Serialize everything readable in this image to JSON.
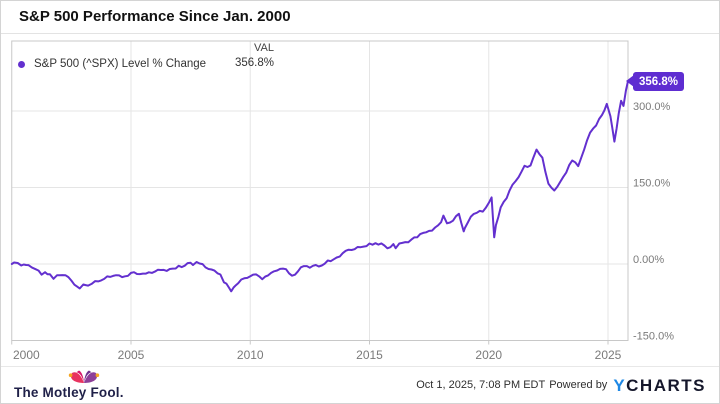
{
  "header": {
    "title": "S&P 500 Performance Since Jan. 2000"
  },
  "legend": {
    "series_label": "S&P 500 (^SPX) Level % Change",
    "val_header": "VAL",
    "val_value": "356.8%"
  },
  "badge": {
    "value": "356.8%"
  },
  "footer": {
    "brand": "The Motley Fool.",
    "timestamp": "Oct 1, 2025, 7:08 PM EDT",
    "powered_by": "Powered by",
    "ycharts_y": "Y",
    "ycharts_rest": "CHARTS"
  },
  "colors": {
    "line": "#6330cf",
    "badge": "#5e2dd1",
    "grid": "#e5e5e5",
    "plot_border": "#c8c8c8",
    "axis_text": "#7a7a7a"
  },
  "chart_data": {
    "type": "line",
    "title": "S&P 500 Performance Since Jan. 2000",
    "legend_position": "top-left",
    "grid": true,
    "y_axis_side": "right",
    "x_range": [
      2000,
      2025.85
    ],
    "y_range": [
      -150,
      437
    ],
    "x_ticks": [
      {
        "label": "2000",
        "year": 2000
      },
      {
        "label": "2005",
        "year": 2005
      },
      {
        "label": "2010",
        "year": 2010
      },
      {
        "label": "2015",
        "year": 2015
      },
      {
        "label": "2020",
        "year": 2020
      },
      {
        "label": "2025",
        "year": 2025
      }
    ],
    "y_ticks": [
      {
        "label": "300.0%",
        "value": 300
      },
      {
        "label": "150.0%",
        "value": 150
      },
      {
        "label": "0.00%",
        "value": 0
      },
      {
        "label": "-150.0%",
        "value": -150
      }
    ],
    "series": [
      {
        "name": "S&P 500 (^SPX) Level % Change",
        "final_value": 356.8,
        "points": [
          [
            2000.0,
            0
          ],
          [
            2000.1,
            3
          ],
          [
            2000.25,
            2
          ],
          [
            2000.4,
            -3
          ],
          [
            2000.5,
            -1
          ],
          [
            2000.7,
            -2.2
          ],
          [
            2000.85,
            -7
          ],
          [
            2001.0,
            -10.1
          ],
          [
            2001.25,
            -21
          ],
          [
            2001.4,
            -16
          ],
          [
            2001.6,
            -20
          ],
          [
            2001.75,
            -29.1
          ],
          [
            2001.9,
            -22
          ],
          [
            2002.0,
            -21.9
          ],
          [
            2002.25,
            -22
          ],
          [
            2002.5,
            -32.6
          ],
          [
            2002.75,
            -44.5
          ],
          [
            2002.85,
            -48
          ],
          [
            2003.0,
            -40.1
          ],
          [
            2003.2,
            -42.3
          ],
          [
            2003.35,
            -39
          ],
          [
            2003.5,
            -33.6
          ],
          [
            2003.75,
            -32.2
          ],
          [
            2004.0,
            -24.3
          ],
          [
            2004.25,
            -23.3
          ],
          [
            2004.5,
            -22.3
          ],
          [
            2004.75,
            -24.1
          ],
          [
            2005.0,
            -17.5
          ],
          [
            2005.25,
            -19.6
          ],
          [
            2005.5,
            -18.9
          ],
          [
            2005.75,
            -16.3
          ],
          [
            2006.0,
            -15.0
          ],
          [
            2006.25,
            -11.8
          ],
          [
            2006.5,
            -13.5
          ],
          [
            2006.75,
            -9.1
          ],
          [
            2007.0,
            -3.5
          ],
          [
            2007.25,
            -3.3
          ],
          [
            2007.5,
            2.3
          ],
          [
            2007.6,
            -2
          ],
          [
            2007.75,
            3.9
          ],
          [
            2008.0,
            -0.1
          ],
          [
            2008.25,
            -9.9
          ],
          [
            2008.5,
            -12.9
          ],
          [
            2008.75,
            -20.6
          ],
          [
            2008.9,
            -36
          ],
          [
            2009.0,
            -38.5
          ],
          [
            2009.2,
            -53.5
          ],
          [
            2009.3,
            -46
          ],
          [
            2009.5,
            -37.4
          ],
          [
            2009.75,
            -28.0
          ],
          [
            2010.0,
            -24.1
          ],
          [
            2010.25,
            -20.4
          ],
          [
            2010.5,
            -29.8
          ],
          [
            2010.75,
            -22.3
          ],
          [
            2011.0,
            -14.4
          ],
          [
            2011.25,
            -9.7
          ],
          [
            2011.5,
            -10.1
          ],
          [
            2011.75,
            -23.0
          ],
          [
            2012.0,
            -14.4
          ],
          [
            2012.25,
            -4.2
          ],
          [
            2012.5,
            -7.3
          ],
          [
            2012.75,
            -1.9
          ],
          [
            2013.0,
            -2.9
          ],
          [
            2013.25,
            6.8
          ],
          [
            2013.5,
            9.3
          ],
          [
            2013.75,
            14.5
          ],
          [
            2014.0,
            25.8
          ],
          [
            2014.25,
            27.4
          ],
          [
            2014.5,
            33.4
          ],
          [
            2014.75,
            34.2
          ],
          [
            2015.0,
            40.2
          ],
          [
            2015.25,
            40.8
          ],
          [
            2015.5,
            40.4
          ],
          [
            2015.75,
            30.7
          ],
          [
            2016.0,
            39.1
          ],
          [
            2016.1,
            31
          ],
          [
            2016.25,
            40.2
          ],
          [
            2016.5,
            42.9
          ],
          [
            2016.75,
            47.6
          ],
          [
            2017.0,
            52.4
          ],
          [
            2017.25,
            60.9
          ],
          [
            2017.5,
            64.9
          ],
          [
            2017.75,
            71.5
          ],
          [
            2018.0,
            82.0
          ],
          [
            2018.1,
            95
          ],
          [
            2018.25,
            79.8
          ],
          [
            2018.5,
            85.0
          ],
          [
            2018.75,
            98.4
          ],
          [
            2018.95,
            64
          ],
          [
            2019.0,
            70.6
          ],
          [
            2019.25,
            92.9
          ],
          [
            2019.5,
            100.3
          ],
          [
            2019.75,
            102.7
          ],
          [
            2020.0,
            119.9
          ],
          [
            2020.12,
            130.5
          ],
          [
            2020.23,
            52.3
          ],
          [
            2020.3,
            76.0
          ],
          [
            2020.5,
            111.0
          ],
          [
            2020.75,
            128.9
          ],
          [
            2021.0,
            155.7
          ],
          [
            2021.25,
            170.4
          ],
          [
            2021.5,
            192.6
          ],
          [
            2021.75,
            193.2
          ],
          [
            2022.0,
            224.4
          ],
          [
            2022.25,
            208.4
          ],
          [
            2022.5,
            157.6
          ],
          [
            2022.75,
            144.1
          ],
          [
            2023.0,
            161.4
          ],
          [
            2023.25,
            179.7
          ],
          [
            2023.5,
            202.9
          ],
          [
            2023.75,
            191.9
          ],
          [
            2024.0,
            224.7
          ],
          [
            2024.25,
            257.6
          ],
          [
            2024.5,
            271.6
          ],
          [
            2024.75,
            292.2
          ],
          [
            2024.95,
            314
          ],
          [
            2025.1,
            290
          ],
          [
            2025.27,
            240
          ],
          [
            2025.45,
            295
          ],
          [
            2025.55,
            320
          ],
          [
            2025.65,
            310
          ],
          [
            2025.75,
            340
          ],
          [
            2025.83,
            356.8
          ]
        ]
      }
    ]
  }
}
